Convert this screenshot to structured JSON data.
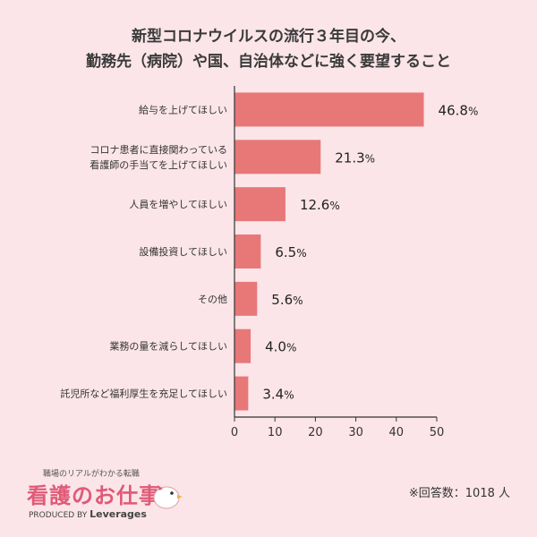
{
  "chart_data": {
    "type": "bar",
    "orientation": "horizontal",
    "title_lines": [
      "新型コロナウイルスの流行３年目の今、",
      "勤務先（病院）や国、自治体などに強く要望すること"
    ],
    "categories": [
      [
        "給与を上げてほしい"
      ],
      [
        "コロナ患者に直接関わっている",
        "看護師の手当てを上げてほしい"
      ],
      [
        "人員を増やしてほしい"
      ],
      [
        "設備投資してほしい"
      ],
      [
        "その他"
      ],
      [
        "業務の量を減らしてほしい"
      ],
      [
        "託児所など福利厚生を充足してほしい"
      ]
    ],
    "values": [
      46.8,
      21.3,
      12.6,
      6.5,
      5.6,
      4.0,
      3.4
    ],
    "value_labels": [
      "46.8",
      "21.3",
      "12.6",
      "6.5",
      "5.6",
      "4.0",
      "3.4"
    ],
    "value_unit": "%",
    "xlim": [
      0,
      50
    ],
    "xticks": [
      0,
      10,
      20,
      30,
      40,
      50
    ],
    "grid": false,
    "bar_color": "#e87878"
  },
  "logo": {
    "tagline": "職場のリアルがわかる転職",
    "name": "看護のお仕事",
    "produced_by": "PRODUCED BY",
    "brand": "Leverages"
  },
  "note": "※回答数：1018 人"
}
